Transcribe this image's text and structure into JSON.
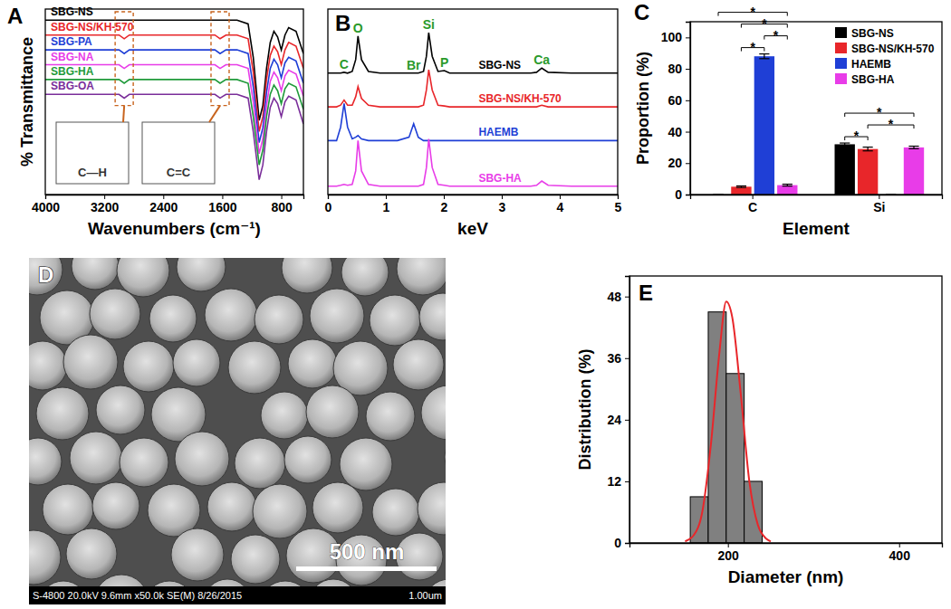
{
  "chart_data": [
    {
      "type": "line",
      "title": "A",
      "x_label": "Wavenumbers (cm⁻¹)",
      "y_label": "% Transmittance",
      "xlim": [
        4000,
        500
      ],
      "ylim": [
        0,
        100
      ],
      "xticks": [
        4000,
        3200,
        2400,
        1600,
        800
      ],
      "tick_labels": "x",
      "x": [
        4000,
        3600,
        3300,
        3000,
        2930,
        2860,
        2600,
        2400,
        2000,
        1800,
        1700,
        1630,
        1550,
        1400,
        1250,
        1180,
        1100,
        1050,
        1000,
        950,
        900,
        850,
        800,
        750,
        700,
        600,
        500
      ],
      "series": [
        {
          "name": "SBG-NS",
          "color": "#000000",
          "values": [
            94,
            94,
            94,
            94,
            94,
            94,
            94,
            94,
            94,
            94,
            94,
            94,
            94,
            94,
            92,
            74,
            40,
            48,
            68,
            82,
            88,
            85,
            78,
            86,
            90,
            88,
            76
          ]
        },
        {
          "name": "SBG-NS/KH-570",
          "color": "#e8262a",
          "values": [
            86,
            86,
            86,
            86,
            84,
            86,
            86,
            86,
            86,
            86,
            86,
            84,
            86,
            86,
            84,
            66,
            34,
            42,
            62,
            75,
            80,
            77,
            70,
            78,
            82,
            80,
            68
          ]
        },
        {
          "name": "SBG-PA",
          "color": "#1f3fd6",
          "values": [
            78,
            78,
            78,
            78,
            76,
            78,
            78,
            78,
            78,
            78,
            78,
            76,
            78,
            78,
            76,
            58,
            28,
            36,
            55,
            68,
            73,
            70,
            63,
            71,
            74,
            72,
            60
          ]
        },
        {
          "name": "SBG-NA",
          "color": "#e83ce8",
          "values": [
            70,
            70,
            70,
            70,
            68,
            70,
            70,
            70,
            70,
            70,
            70,
            68,
            70,
            70,
            68,
            50,
            22,
            30,
            48,
            61,
            66,
            63,
            56,
            64,
            67,
            65,
            53
          ]
        },
        {
          "name": "SBG-HA",
          "color": "#1f9a3a",
          "values": [
            62,
            62,
            62,
            62,
            60,
            62,
            62,
            62,
            62,
            62,
            62,
            60,
            62,
            62,
            60,
            42,
            16,
            24,
            42,
            54,
            59,
            56,
            49,
            57,
            60,
            58,
            46
          ]
        },
        {
          "name": "SBG-OA",
          "color": "#7a2e9a",
          "values": [
            54,
            54,
            54,
            54,
            52,
            54,
            54,
            54,
            54,
            54,
            54,
            52,
            54,
            54,
            52,
            34,
            8,
            16,
            34,
            47,
            52,
            49,
            42,
            50,
            53,
            51,
            38
          ]
        }
      ],
      "annotations": [
        {
          "text": "C—H",
          "x": 2930
        },
        {
          "text": "C=C",
          "x": 1630
        }
      ]
    },
    {
      "type": "line",
      "title": "B",
      "x_label": "keV",
      "xlim": [
        0,
        5
      ],
      "ylim": [
        0,
        110
      ],
      "xticks": [
        0,
        1,
        2,
        3,
        4,
        5
      ],
      "tick_labels": "x",
      "x": [
        0,
        0.15,
        0.22,
        0.28,
        0.34,
        0.42,
        0.48,
        0.52,
        0.58,
        0.7,
        0.9,
        1.2,
        1.4,
        1.48,
        1.56,
        1.65,
        1.7,
        1.74,
        1.8,
        1.9,
        2.01,
        2.1,
        2.5,
        3.5,
        3.6,
        3.69,
        3.8,
        4.2,
        5.0
      ],
      "series": [
        {
          "name": "SBG-NS",
          "color": "#000000",
          "values": [
            72,
            72,
            72,
            72.5,
            72,
            73,
            80,
            94,
            80,
            73,
            72,
            72,
            72,
            72,
            72,
            73,
            82,
            96,
            82,
            73,
            73.5,
            72,
            72,
            72,
            72.5,
            75,
            72.5,
            72,
            72
          ]
        },
        {
          "name": "SBG-NS/KH-570",
          "color": "#e8262a",
          "values": [
            52,
            52,
            53,
            56,
            53,
            53,
            58,
            64,
            57,
            53,
            52,
            52,
            52,
            52,
            52,
            53,
            62,
            74,
            62,
            53,
            52.5,
            52,
            52,
            52,
            52,
            53,
            52,
            52,
            52
          ]
        },
        {
          "name": "HAEMB",
          "color": "#1f3fd6",
          "values": [
            32,
            32,
            40,
            54,
            40,
            33,
            34,
            35,
            33,
            32,
            32,
            32,
            34,
            42,
            34,
            32,
            32,
            32,
            32,
            32,
            32,
            32,
            32,
            32,
            32,
            32,
            32,
            32,
            32
          ]
        },
        {
          "name": "SBG-HA",
          "color": "#e83ce8",
          "values": [
            5,
            5,
            5.5,
            6,
            5.5,
            6,
            14,
            32,
            14,
            6,
            5,
            5,
            5,
            5,
            5,
            6,
            16,
            33,
            16,
            6,
            5.5,
            5,
            5,
            5,
            5.5,
            8,
            5.5,
            5,
            5
          ]
        }
      ],
      "annotations": [
        {
          "text": "C",
          "x": 0.28
        },
        {
          "text": "O",
          "x": 0.52
        },
        {
          "text": "Br",
          "x": 1.48
        },
        {
          "text": "Si",
          "x": 1.74
        },
        {
          "text": "P",
          "x": 2.01
        },
        {
          "text": "Ca",
          "x": 3.69
        }
      ]
    },
    {
      "type": "bar",
      "title": "C",
      "x_label": "Element",
      "y_label": "Proportion (%)",
      "categories": [
        "C",
        "Si"
      ],
      "ylim": [
        0,
        110
      ],
      "yticks": [
        0,
        20,
        40,
        60,
        80,
        100
      ],
      "legend": "upper right",
      "series": [
        {
          "name": "SBG-NS",
          "color": "#000000",
          "values": [
            0,
            32
          ],
          "errors": [
            0,
            0.8
          ]
        },
        {
          "name": "SBG-NS/KH-570",
          "color": "#e8262a",
          "values": [
            5,
            29
          ],
          "errors": [
            0.5,
            1.2
          ]
        },
        {
          "name": "HAEMB",
          "color": "#1f3fd6",
          "values": [
            88,
            0
          ],
          "errors": [
            1.5,
            0
          ]
        },
        {
          "name": "SBG-HA",
          "color": "#e83ce8",
          "values": [
            6,
            30
          ],
          "errors": [
            0.6,
            0.8
          ]
        }
      ],
      "annotations": [
        {
          "text": "*",
          "category": "C",
          "from": 1,
          "to": 2
        },
        {
          "text": "*",
          "category": "C",
          "from": 2,
          "to": 3
        },
        {
          "text": "*",
          "category": "C",
          "from": 1,
          "to": 3
        },
        {
          "text": "*",
          "category": "C",
          "from": 0,
          "to": 3
        },
        {
          "text": "*",
          "category": "Si",
          "from": 0,
          "to": 1
        },
        {
          "text": "*",
          "category": "Si",
          "from": 1,
          "to": 3
        },
        {
          "text": "*",
          "category": "Si",
          "from": 0,
          "to": 3
        }
      ]
    },
    {
      "type": "image",
      "title": "D",
      "annotations": [
        "500 nm",
        "S-4800 20.0kV 9.6mm x50.0k SE(M) 8/26/2015",
        "1.00um"
      ]
    },
    {
      "type": "histogram",
      "title": "E",
      "x_label": "Diameter (nm)",
      "y_label": "Distribution (%)",
      "bins": [
        156,
        177,
        198,
        219,
        240
      ],
      "values": [
        9,
        45,
        33,
        12
      ],
      "color": "#808080",
      "xlim": [
        85,
        450
      ],
      "xticks": [
        200,
        400
      ],
      "ylim": [
        0,
        52
      ],
      "yticks": [
        0,
        12,
        24,
        36,
        48
      ],
      "series": [
        {
          "type": "line",
          "color": "#e8262a",
          "x": [
            150,
            160,
            170,
            180,
            190,
            198,
            205,
            215,
            225,
            235,
            245,
            250
          ],
          "values": [
            0.3,
            1.5,
            6,
            19,
            37,
            47,
            44,
            29,
            12,
            3.5,
            0.8,
            0.3
          ]
        }
      ]
    }
  ]
}
